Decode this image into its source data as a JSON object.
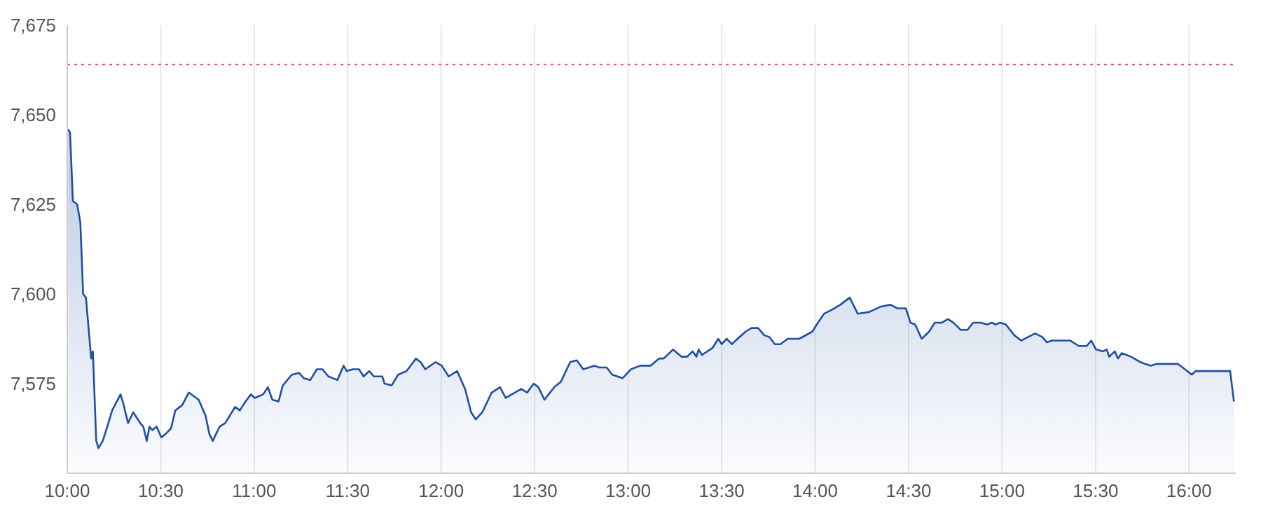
{
  "chart_data": {
    "type": "area",
    "x": [
      10.005,
      10.015,
      10.03,
      10.053,
      10.07,
      10.085,
      10.1,
      10.128,
      10.137,
      10.155,
      10.167,
      10.19,
      10.22,
      10.24,
      10.285,
      10.302,
      10.325,
      10.353,
      10.39,
      10.407,
      10.425,
      10.44,
      10.455,
      10.478,
      10.503,
      10.527,
      10.555,
      10.578,
      10.615,
      10.65,
      10.703,
      10.74,
      10.76,
      10.778,
      10.815,
      10.845,
      10.898,
      10.923,
      10.953,
      10.983,
      11.003,
      11.048,
      11.073,
      11.097,
      11.13,
      11.153,
      11.185,
      11.202,
      11.24,
      11.265,
      11.3,
      11.335,
      11.365,
      11.397,
      11.445,
      11.478,
      11.495,
      11.528,
      11.56,
      11.585,
      11.615,
      11.64,
      11.685,
      11.697,
      11.735,
      11.77,
      11.815,
      11.865,
      11.89,
      11.915,
      11.97,
      12.003,
      12.04,
      12.085,
      12.128,
      12.16,
      12.185,
      12.22,
      12.27,
      12.315,
      12.345,
      12.378,
      12.428,
      12.46,
      12.495,
      12.52,
      12.552,
      12.605,
      12.64,
      12.69,
      12.725,
      12.76,
      12.82,
      12.845,
      12.885,
      12.915,
      12.97,
      13.015,
      13.065,
      13.12,
      13.165,
      13.19,
      13.24,
      13.285,
      13.315,
      13.345,
      13.365,
      13.377,
      13.395,
      13.452,
      13.482,
      13.5,
      13.527,
      13.555,
      13.585,
      13.628,
      13.66,
      13.695,
      13.728,
      13.755,
      13.785,
      13.815,
      13.853,
      13.915,
      13.985,
      14.015,
      14.048,
      14.085,
      14.103,
      14.135,
      14.185,
      14.228,
      14.29,
      14.352,
      14.403,
      14.44,
      14.485,
      14.51,
      14.535,
      14.57,
      14.61,
      14.64,
      14.678,
      14.71,
      14.74,
      14.778,
      14.815,
      14.845,
      14.885,
      14.92,
      14.945,
      14.965,
      14.99,
      15.02,
      15.065,
      15.102,
      15.14,
      15.177,
      15.215,
      15.24,
      15.265,
      15.315,
      15.365,
      15.41,
      15.453,
      15.477,
      15.503,
      15.54,
      15.56,
      15.573,
      15.603,
      15.62,
      15.64,
      15.69,
      15.74,
      15.765,
      15.795,
      15.828,
      15.865,
      15.903,
      15.94,
      15.99,
      16.015,
      16.035,
      16.22,
      16.24
    ],
    "series": [
      {
        "color": "#1f4ea3",
        "values": [
          7646,
          7645,
          7626,
          7625,
          7620,
          7600,
          7599,
          7582,
          7584,
          7559,
          7557,
          7559,
          7564,
          7567.5,
          7572,
          7569,
          7564,
          7567,
          7564,
          7563,
          7559,
          7563,
          7562,
          7563,
          7560,
          7561,
          7562.5,
          7567.5,
          7569,
          7572.5,
          7570.5,
          7566,
          7561,
          7559,
          7563,
          7564,
          7568.5,
          7567.5,
          7570,
          7572,
          7571,
          7572,
          7574,
          7570.5,
          7570,
          7574.5,
          7576.5,
          7577.5,
          7578,
          7576.5,
          7576,
          7579,
          7579,
          7577,
          7576,
          7580,
          7578.5,
          7579,
          7579,
          7577,
          7578.5,
          7577,
          7577,
          7575,
          7574.5,
          7577.5,
          7578.5,
          7582,
          7581,
          7579,
          7581,
          7580,
          7577,
          7578.5,
          7573.5,
          7567,
          7565,
          7567,
          7572.5,
          7574,
          7571,
          7572,
          7573.5,
          7572.5,
          7575,
          7574,
          7570.5,
          7574,
          7575.5,
          7581,
          7581.5,
          7579,
          7580,
          7579.5,
          7579.5,
          7577.5,
          7576.5,
          7579,
          7580,
          7580,
          7582,
          7582,
          7584.5,
          7582.5,
          7582.5,
          7584,
          7582.5,
          7584.5,
          7583,
          7585,
          7587.5,
          7586,
          7587.5,
          7586,
          7587.5,
          7589.5,
          7590.5,
          7590.5,
          7588.5,
          7588,
          7586,
          7586,
          7587.5,
          7587.5,
          7589.5,
          7592,
          7594.5,
          7595.5,
          7596,
          7597,
          7599,
          7594.5,
          7595,
          7596.5,
          7597,
          7596,
          7596,
          7592,
          7591.5,
          7587.5,
          7589.5,
          7592,
          7592,
          7593,
          7592,
          7590,
          7590,
          7592,
          7592,
          7591.5,
          7592,
          7591.5,
          7592,
          7591.5,
          7588.5,
          7587,
          7588,
          7589,
          7588,
          7586.5,
          7587,
          7587,
          7587,
          7585.5,
          7585.5,
          7587,
          7584.5,
          7584,
          7584.5,
          7582.5,
          7584,
          7582,
          7583.5,
          7582.5,
          7581,
          7580.5,
          7580,
          7580.5,
          7580.5,
          7580.5,
          7580.5,
          7578.5,
          7577.5,
          7578.5,
          7578.5,
          7570
        ]
      }
    ],
    "xlim": [
      10,
      16.25
    ],
    "xticks": [
      {
        "value": 10,
        "label": "10:00"
      },
      {
        "value": 10.5,
        "label": "10:30"
      },
      {
        "value": 11,
        "label": "11:00"
      },
      {
        "value": 11.5,
        "label": "11:30"
      },
      {
        "value": 12,
        "label": "12:00"
      },
      {
        "value": 12.5,
        "label": "12:30"
      },
      {
        "value": 13,
        "label": "13:00"
      },
      {
        "value": 13.5,
        "label": "13:30"
      },
      {
        "value": 14,
        "label": "14:00"
      },
      {
        "value": 14.5,
        "label": "14:30"
      },
      {
        "value": 15,
        "label": "15:00"
      },
      {
        "value": 15.5,
        "label": "15:30"
      },
      {
        "value": 16,
        "label": "16:00"
      }
    ],
    "ylim": [
      7550,
      7675
    ],
    "yticks": [
      {
        "value": 7575,
        "label": "7,575"
      },
      {
        "value": 7600,
        "label": "7,600"
      },
      {
        "value": 7625,
        "label": "7,625"
      },
      {
        "value": 7650,
        "label": "7,650"
      },
      {
        "value": 7675,
        "label": "7,675"
      }
    ],
    "ref_lines": [
      {
        "axis": "y",
        "value": 7664,
        "color": "#e05050",
        "line_style": "dotted"
      }
    ],
    "grid": true
  }
}
